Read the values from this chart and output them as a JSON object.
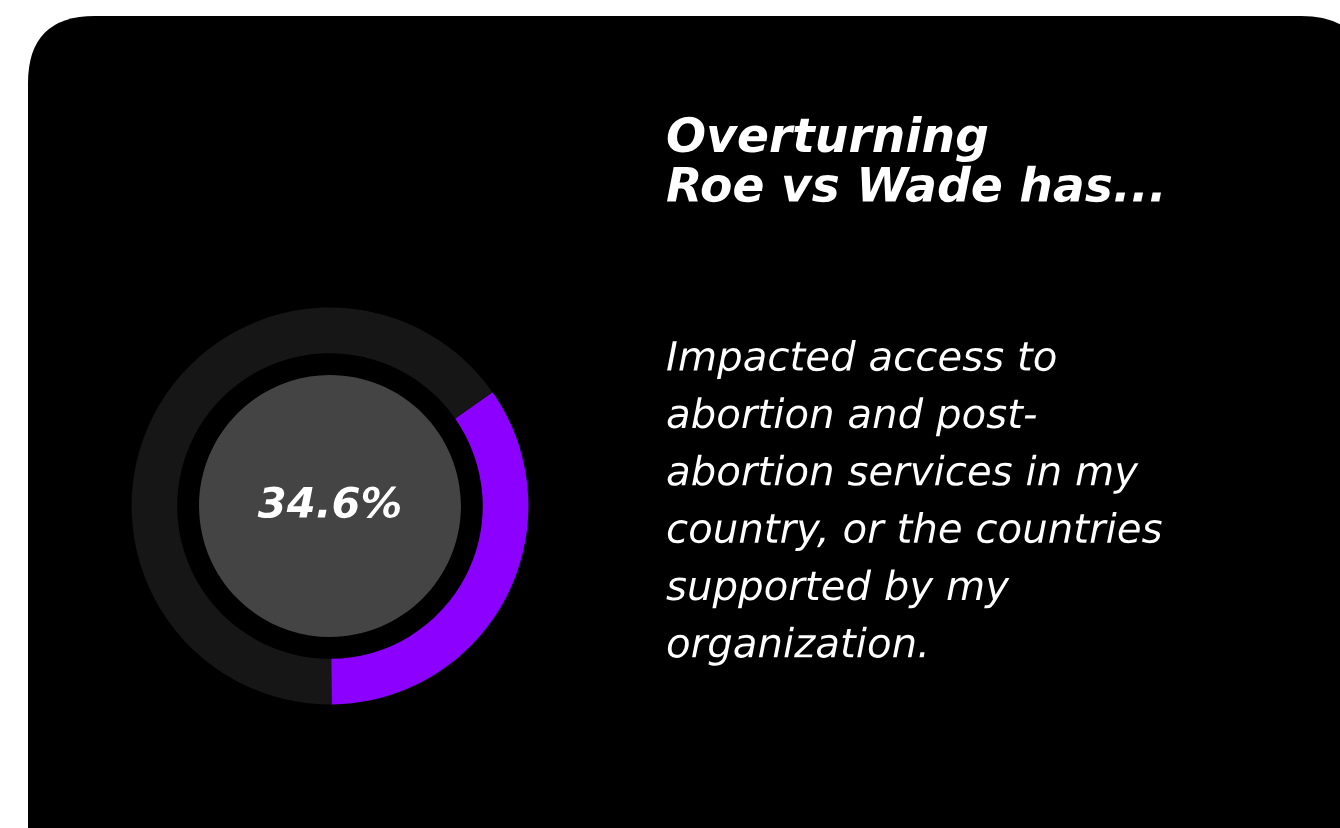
{
  "chart_data": {
    "type": "donut",
    "title": "Overturning\nRoe vs Wade has...",
    "subtitle": "Impacted access to\nabortion and post-\nabortion services in my\ncountry, or the countries\nsupported by my\norganization.",
    "categories": [
      null,
      null
    ],
    "values": [
      34.6,
      65.4
    ],
    "colors": [
      "#8c00ff",
      "#161616"
    ],
    "annotations": [
      "34.6%"
    ]
  }
}
